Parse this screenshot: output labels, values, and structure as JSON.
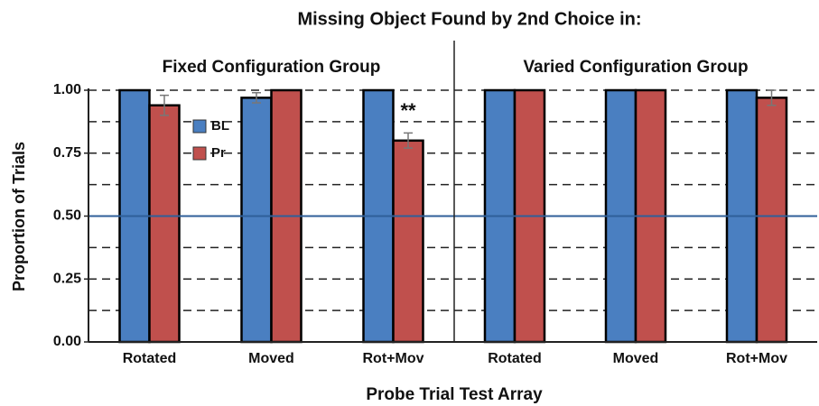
{
  "chart_data": {
    "type": "bar",
    "title": "Missing Object Found by 2nd Choice in:",
    "y_label": "Proportion of Trials",
    "x_label": "Probe Trial Test Array",
    "ylim": [
      0,
      1
    ],
    "yticks": [
      {
        "value": 0,
        "label": "0.00"
      },
      {
        "value": 0.25,
        "label": "0.25"
      },
      {
        "value": 0.5,
        "label": "0.50"
      },
      {
        "value": 0.75,
        "label": "0.75"
      },
      {
        "value": 1,
        "label": "1.00"
      }
    ],
    "minor_yticks": [
      0.125,
      0.375,
      0.625,
      0.875
    ],
    "reference_line": {
      "value": 0.5,
      "color": "#2f5f99"
    },
    "grid": true,
    "panels": [
      {
        "title": "Fixed Configuration Group",
        "categories": [
          "Rotated",
          "Moved",
          "Rot+Mov"
        ],
        "annotation": "**",
        "series": [
          {
            "name": "BL",
            "color": "#4a7fc1",
            "values": [
              1.0,
              0.97,
              1.0
            ],
            "errors": [
              null,
              0.02,
              null
            ]
          },
          {
            "name": "Pr",
            "color": "#c0504d",
            "values": [
              0.94,
              1.0,
              0.8
            ],
            "errors": [
              0.04,
              null,
              0.03
            ]
          }
        ]
      },
      {
        "title": "Varied Configuration Group",
        "categories": [
          "Rotated",
          "Moved",
          "Rot+Mov"
        ],
        "series": [
          {
            "name": "BL",
            "color": "#4a7fc1",
            "values": [
              1.0,
              1.0,
              1.0
            ],
            "errors": [
              null,
              null,
              null
            ]
          },
          {
            "name": "Pr",
            "color": "#c0504d",
            "values": [
              1.0,
              1.0,
              0.97
            ],
            "errors": [
              null,
              null,
              0.03
            ]
          }
        ]
      }
    ]
  }
}
